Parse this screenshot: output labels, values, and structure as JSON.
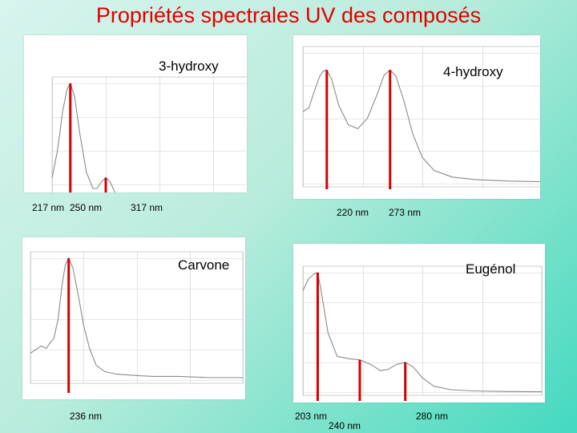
{
  "title": "Propriétés spectrales UV des composés",
  "colors": {
    "title": "#e00000",
    "marker": "#d40000",
    "curve": "#8a8a8a",
    "grid": "#cfcfcf"
  },
  "chart_data": [
    {
      "type": "line",
      "compound": "3-hydroxy",
      "peaks_nm": [
        217,
        250,
        317
      ],
      "peak_labels": [
        "217 nm",
        "250 nm",
        "317 nm"
      ],
      "xlim": [
        200,
        400
      ],
      "x": [
        200,
        205,
        210,
        214,
        217,
        221,
        226,
        232,
        238,
        242,
        246,
        250,
        254,
        258,
        264,
        272,
        282,
        292,
        302,
        310,
        317,
        324,
        332,
        342,
        355,
        375,
        400
      ],
      "y": [
        0.3,
        0.5,
        0.8,
        0.96,
        1.0,
        0.9,
        0.62,
        0.34,
        0.22,
        0.22,
        0.27,
        0.3,
        0.27,
        0.2,
        0.1,
        0.05,
        0.03,
        0.03,
        0.05,
        0.07,
        0.08,
        0.07,
        0.04,
        0.02,
        0.01,
        0.005,
        0.003
      ]
    },
    {
      "type": "line",
      "compound": "4-hydroxy",
      "peaks_nm": [
        220,
        273
      ],
      "peak_labels": [
        "220 nm",
        "273 nm"
      ],
      "xlim": [
        200,
        400
      ],
      "x": [
        200,
        205,
        210,
        214,
        217,
        220,
        224,
        230,
        238,
        246,
        254,
        262,
        268,
        273,
        278,
        285,
        292,
        300,
        310,
        325,
        345,
        370,
        400
      ],
      "y": [
        0.55,
        0.58,
        0.72,
        0.82,
        0.86,
        0.87,
        0.8,
        0.6,
        0.45,
        0.42,
        0.5,
        0.68,
        0.83,
        0.87,
        0.82,
        0.62,
        0.38,
        0.2,
        0.1,
        0.05,
        0.03,
        0.02,
        0.015
      ]
    },
    {
      "type": "line",
      "compound": "Carvone",
      "peaks_nm": [
        236
      ],
      "peak_labels": [
        "236 nm"
      ],
      "xlim": [
        200,
        400
      ],
      "x": [
        200,
        205,
        210,
        215,
        218,
        222,
        226,
        230,
        233,
        236,
        240,
        245,
        250,
        256,
        262,
        270,
        280,
        295,
        315,
        340,
        370,
        400
      ],
      "y": [
        0.22,
        0.25,
        0.28,
        0.26,
        0.3,
        0.34,
        0.5,
        0.8,
        0.95,
        1.0,
        0.92,
        0.7,
        0.45,
        0.25,
        0.12,
        0.07,
        0.05,
        0.04,
        0.03,
        0.03,
        0.02,
        0.02
      ]
    },
    {
      "type": "line",
      "compound": "Eugénol",
      "peaks_nm": [
        203,
        240,
        280
      ],
      "peak_labels": [
        "203 nm",
        "240 nm",
        "280 nm"
      ],
      "xlim": [
        190,
        400
      ],
      "x": [
        190,
        195,
        200,
        203,
        206,
        212,
        220,
        230,
        240,
        250,
        258,
        265,
        272,
        280,
        287,
        295,
        305,
        320,
        340,
        370,
        400
      ],
      "y": [
        0.85,
        0.95,
        0.99,
        1.0,
        0.85,
        0.5,
        0.3,
        0.28,
        0.27,
        0.23,
        0.18,
        0.19,
        0.23,
        0.25,
        0.21,
        0.12,
        0.05,
        0.02,
        0.01,
        0.005,
        0.003
      ]
    }
  ]
}
